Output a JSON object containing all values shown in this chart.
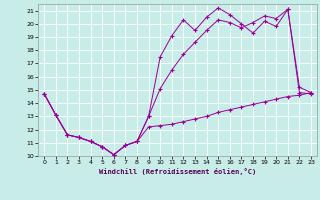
{
  "xlabel": "Windchill (Refroidissement éolien,°C)",
  "background_color": "#c8ece8",
  "grid_color": "#aadddd",
  "line_color": "#990099",
  "xlim": [
    -0.5,
    23.5
  ],
  "ylim": [
    10,
    21.5
  ],
  "xticks": [
    0,
    1,
    2,
    3,
    4,
    5,
    6,
    7,
    8,
    9,
    10,
    11,
    12,
    13,
    14,
    15,
    16,
    17,
    18,
    19,
    20,
    21,
    22,
    23
  ],
  "yticks": [
    10,
    11,
    12,
    13,
    14,
    15,
    16,
    17,
    18,
    19,
    20,
    21
  ],
  "line1_x": [
    0,
    1,
    2,
    3,
    4,
    5,
    6,
    7,
    8,
    9,
    10,
    11,
    12,
    13,
    14,
    15,
    16,
    17,
    18,
    19,
    20,
    21,
    22,
    23
  ],
  "line1_y": [
    14.7,
    13.1,
    11.6,
    11.4,
    11.1,
    10.7,
    10.1,
    10.8,
    11.1,
    12.2,
    12.3,
    12.4,
    12.6,
    12.8,
    13.0,
    13.3,
    13.5,
    13.7,
    13.9,
    14.1,
    14.3,
    14.5,
    14.6,
    14.8
  ],
  "line2_x": [
    0,
    1,
    2,
    3,
    4,
    5,
    6,
    7,
    8,
    9,
    10,
    11,
    12,
    13,
    14,
    15,
    16,
    17,
    18,
    19,
    20,
    21,
    22,
    23
  ],
  "line2_y": [
    14.7,
    13.1,
    11.6,
    11.4,
    11.1,
    10.7,
    10.1,
    10.8,
    11.1,
    13.0,
    17.5,
    19.1,
    20.3,
    19.5,
    20.5,
    21.2,
    20.7,
    20.0,
    19.3,
    20.2,
    19.8,
    21.1,
    15.2,
    14.8
  ],
  "line3_x": [
    0,
    1,
    2,
    3,
    4,
    5,
    6,
    7,
    8,
    9,
    10,
    11,
    12,
    13,
    14,
    15,
    16,
    17,
    18,
    19,
    20,
    21,
    22,
    23
  ],
  "line3_y": [
    14.7,
    13.1,
    11.6,
    11.4,
    11.1,
    10.7,
    10.1,
    10.8,
    11.1,
    13.0,
    15.1,
    16.5,
    17.7,
    18.6,
    19.5,
    20.3,
    20.1,
    19.7,
    20.1,
    20.6,
    20.4,
    21.1,
    14.8,
    14.7
  ]
}
